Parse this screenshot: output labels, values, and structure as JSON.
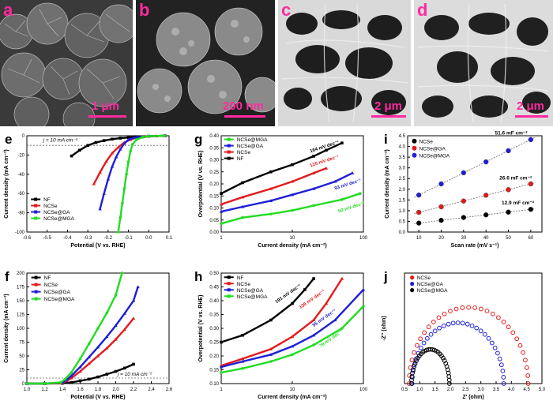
{
  "images": [
    {
      "letter": "a",
      "scale": "1 μm"
    },
    {
      "letter": "b",
      "scale": "200 nm"
    },
    {
      "letter": "c",
      "scale": "2 μm"
    },
    {
      "letter": "d",
      "scale": "2 μm"
    }
  ],
  "colors": {
    "NF": "#000000",
    "NCSe": "#e31a1c",
    "NCSe@GA": "#1f1fd6",
    "NCSe@MGA": "#22dd22",
    "magenta": "#ff2aa0"
  },
  "chart_data": [
    {
      "panel": "e",
      "type": "line",
      "xlabel": "Potential (V vs. RHE)",
      "ylabel": "Current density (mA cm⁻²)",
      "xlim": [
        -0.6,
        0.1
      ],
      "ylim": [
        -100,
        0
      ],
      "xticks": [
        "-0.6",
        "-0.5",
        "-0.4",
        "-0.3",
        "-0.2",
        "-0.1",
        "0.0",
        "0.1"
      ],
      "yticks": [
        "0",
        "-20",
        "-40",
        "-60",
        "-80",
        "-100"
      ],
      "annotation": "j = 10 mA cm⁻²",
      "legend": [
        "NF",
        "NCSe",
        "NCSe@GA",
        "NCSe@MGA"
      ],
      "series": [
        {
          "name": "NF",
          "x": [
            -0.38,
            -0.34,
            -0.3,
            -0.26,
            -0.22,
            -0.18,
            -0.14,
            -0.1,
            -0.06,
            0.0,
            0.08
          ],
          "y": [
            -21,
            -15,
            -10,
            -7,
            -5,
            -3.5,
            -2.5,
            -1.8,
            -1,
            -0.5,
            0
          ]
        },
        {
          "name": "NCSe",
          "x": [
            -0.27,
            -0.24,
            -0.21,
            -0.18,
            -0.15,
            -0.12,
            -0.09,
            -0.06,
            -0.02,
            0.04,
            0.08
          ],
          "y": [
            -50,
            -38,
            -27,
            -18,
            -12,
            -7,
            -4,
            -2,
            -1,
            -0.3,
            0
          ]
        },
        {
          "name": "NCSe@GA",
          "x": [
            -0.24,
            -0.22,
            -0.2,
            -0.18,
            -0.16,
            -0.14,
            -0.12,
            -0.1,
            -0.06,
            0.0,
            0.08
          ],
          "y": [
            -76,
            -60,
            -45,
            -32,
            -22,
            -14,
            -8,
            -4,
            -1.5,
            -0.5,
            0
          ]
        },
        {
          "name": "NCSe@MGA",
          "x": [
            -0.15,
            -0.14,
            -0.13,
            -0.12,
            -0.11,
            -0.1,
            -0.09,
            -0.08,
            -0.06,
            -0.03,
            0.0,
            0.08
          ],
          "y": [
            -100,
            -85,
            -70,
            -55,
            -40,
            -27,
            -16,
            -9,
            -4,
            -1.5,
            -0.5,
            0
          ]
        }
      ]
    },
    {
      "panel": "f",
      "type": "line",
      "xlabel": "Potential (V vs. RHE)",
      "ylabel": "Current density (mA cm⁻²)",
      "xlim": [
        1.0,
        2.6
      ],
      "ylim": [
        0,
        200
      ],
      "xticks": [
        "1.0",
        "1.2",
        "1.4",
        "1.6",
        "1.8",
        "2.0",
        "2.2",
        "2.4",
        "2.6"
      ],
      "yticks": [
        "0",
        "25",
        "50",
        "75",
        "100",
        "125",
        "150",
        "175",
        "200"
      ],
      "annotation": "j = 10 mA cm⁻²",
      "legend": [
        "NF",
        "NCSe",
        "NCSe@GA",
        "NCSe@MGA"
      ],
      "series": [
        {
          "name": "NF",
          "x": [
            1.0,
            1.2,
            1.4,
            1.5,
            1.6,
            1.7,
            1.8,
            1.9,
            2.0,
            2.1,
            2.2
          ],
          "y": [
            0,
            0,
            0.5,
            2,
            5,
            8,
            12,
            17,
            22,
            28,
            35
          ]
        },
        {
          "name": "NCSe",
          "x": [
            1.0,
            1.2,
            1.4,
            1.45,
            1.5,
            1.6,
            1.7,
            1.8,
            1.9,
            2.0,
            2.1,
            2.2
          ],
          "y": [
            0,
            0,
            1,
            5,
            10,
            22,
            36,
            50,
            64,
            80,
            98,
            118
          ]
        },
        {
          "name": "NCSe@GA",
          "x": [
            1.0,
            1.2,
            1.4,
            1.45,
            1.5,
            1.6,
            1.7,
            1.8,
            1.9,
            2.0,
            2.1,
            2.2,
            2.25
          ],
          "y": [
            0,
            0,
            2,
            7,
            14,
            30,
            48,
            66,
            85,
            105,
            127,
            150,
            175
          ]
        },
        {
          "name": "NCSe@MGA",
          "x": [
            1.0,
            1.2,
            1.38,
            1.43,
            1.5,
            1.6,
            1.7,
            1.8,
            1.9,
            2.0,
            2.07
          ],
          "y": [
            0,
            0,
            2,
            8,
            20,
            45,
            72,
            100,
            128,
            160,
            200
          ]
        }
      ]
    },
    {
      "panel": "g",
      "type": "line",
      "xlabel": "Current density (mA cm⁻²)",
      "ylabel": "Overpotential (V vs. RHE)",
      "xscale": "log",
      "xlim": [
        1,
        100
      ],
      "ylim": [
        0.0,
        0.4
      ],
      "xticks": [
        "1",
        "10",
        "100"
      ],
      "yticks": [
        "0.00",
        "0.05",
        "0.10",
        "0.15",
        "0.20",
        "0.25",
        "0.30",
        "0.35",
        "0.40"
      ],
      "legend": [
        "NCSe@MGA",
        "NCSe@GA",
        "NCSe",
        "NF"
      ],
      "annotations": [
        "164 mV dec⁻¹",
        "125 mV dec⁻¹",
        "93 mV dec⁻¹",
        "50 mV dec⁻¹"
      ],
      "series": [
        {
          "name": "NF",
          "x": [
            1,
            2,
            5,
            10,
            20,
            30,
            50
          ],
          "y": [
            0.16,
            0.205,
            0.25,
            0.28,
            0.315,
            0.34,
            0.37
          ]
        },
        {
          "name": "NCSe",
          "x": [
            1,
            2,
            5,
            10,
            20,
            30
          ],
          "y": [
            0.115,
            0.145,
            0.18,
            0.21,
            0.245,
            0.265
          ]
        },
        {
          "name": "NCSe@GA",
          "x": [
            1,
            2,
            5,
            10,
            20,
            40,
            70
          ],
          "y": [
            0.085,
            0.105,
            0.13,
            0.155,
            0.18,
            0.21,
            0.245
          ]
        },
        {
          "name": "NCSe@MGA",
          "x": [
            1,
            2,
            5,
            10,
            20,
            50,
            90
          ],
          "y": [
            0.035,
            0.06,
            0.075,
            0.09,
            0.11,
            0.135,
            0.16
          ]
        }
      ]
    },
    {
      "panel": "h",
      "type": "line",
      "xlabel": "Current density (mA cm⁻²)",
      "ylabel": "Overpotential (V vs. RHE)",
      "xscale": "log",
      "xlim": [
        1,
        100
      ],
      "ylim": [
        0.1,
        0.5
      ],
      "xticks": [
        "1",
        "10",
        "100"
      ],
      "yticks": [
        "0.10",
        "0.15",
        "0.20",
        "0.25",
        "0.30",
        "0.35",
        "0.40",
        "0.45",
        "0.50"
      ],
      "legend": [
        "NF",
        "NCSe",
        "NCSe@GA",
        "NCSe@MGA"
      ],
      "annotations": [
        "191 mV dec⁻¹",
        "136 mV dec⁻¹",
        "95 mV dec⁻¹",
        "79 mV dec⁻¹"
      ],
      "series": [
        {
          "name": "NF",
          "x": [
            1,
            2,
            5,
            10,
            15,
            20
          ],
          "y": [
            0.25,
            0.275,
            0.33,
            0.39,
            0.44,
            0.48
          ]
        },
        {
          "name": "NCSe",
          "x": [
            1,
            2,
            5,
            10,
            20,
            30,
            50
          ],
          "y": [
            0.165,
            0.19,
            0.225,
            0.27,
            0.33,
            0.39,
            0.48
          ]
        },
        {
          "name": "NCSe@GA",
          "x": [
            1,
            2,
            5,
            10,
            20,
            40,
            100
          ],
          "y": [
            0.16,
            0.18,
            0.205,
            0.235,
            0.275,
            0.33,
            0.44
          ]
        },
        {
          "name": "NCSe@MGA",
          "x": [
            1,
            2,
            5,
            10,
            20,
            50,
            100
          ],
          "y": [
            0.14,
            0.155,
            0.18,
            0.205,
            0.24,
            0.3,
            0.38
          ]
        }
      ]
    },
    {
      "panel": "i",
      "type": "scatter",
      "xlabel": "Scan rate (mV s⁻¹)",
      "ylabel": "Current density (mA cm⁻²)",
      "xlim": [
        5,
        65
      ],
      "ylim": [
        0.0,
        4.5
      ],
      "xticks": [
        "10",
        "20",
        "30",
        "40",
        "50",
        "60"
      ],
      "yticks": [
        "0.0",
        "0.5",
        "1.0",
        "1.5",
        "2.0",
        "2.5",
        "3.0",
        "3.5",
        "4.0",
        "4.5"
      ],
      "legend": [
        "NCSe",
        "NCSe@GA",
        "NCSe@MGA"
      ],
      "annotations": [
        "51.6 mF cm⁻²",
        "26.6 mF cm⁻²",
        "12.9 mF cm⁻²"
      ],
      "series": [
        {
          "name": "NCSe",
          "x": [
            10,
            20,
            30,
            40,
            50,
            60
          ],
          "y": [
            0.42,
            0.55,
            0.68,
            0.8,
            0.93,
            1.06
          ]
        },
        {
          "name": "NCSe@GA",
          "x": [
            10,
            20,
            30,
            40,
            50,
            60
          ],
          "y": [
            0.92,
            1.18,
            1.45,
            1.72,
            1.98,
            2.25
          ]
        },
        {
          "name": "NCSe@MGA",
          "x": [
            10,
            20,
            30,
            40,
            50,
            60
          ],
          "y": [
            1.73,
            2.25,
            2.77,
            3.28,
            3.8,
            4.32
          ]
        }
      ]
    },
    {
      "panel": "j",
      "type": "scatter",
      "xlabel": "Z' (ohm)",
      "ylabel": "-Z'' (ohm)",
      "xlim": [
        0.5,
        5.0
      ],
      "ylim": [
        0.0,
        2.0
      ],
      "xticks": [
        "0.5",
        "1.0",
        "1.5",
        "2.0",
        "2.5",
        "3.0",
        "3.5",
        "4.0",
        "4.5",
        "5.0"
      ],
      "yticks": [],
      "legend": [
        "NCSe",
        "NCSe@GA",
        "NCSe@MGA"
      ],
      "series": [
        {
          "name": "NCSe",
          "center": 2.6,
          "radius": 1.95,
          "height": 1.38
        },
        {
          "name": "NCSe@GA",
          "center": 2.25,
          "radius": 1.5,
          "height": 1.1
        },
        {
          "name": "NCSe@MGA",
          "center": 1.35,
          "radius": 0.62,
          "height": 0.62
        }
      ]
    }
  ]
}
